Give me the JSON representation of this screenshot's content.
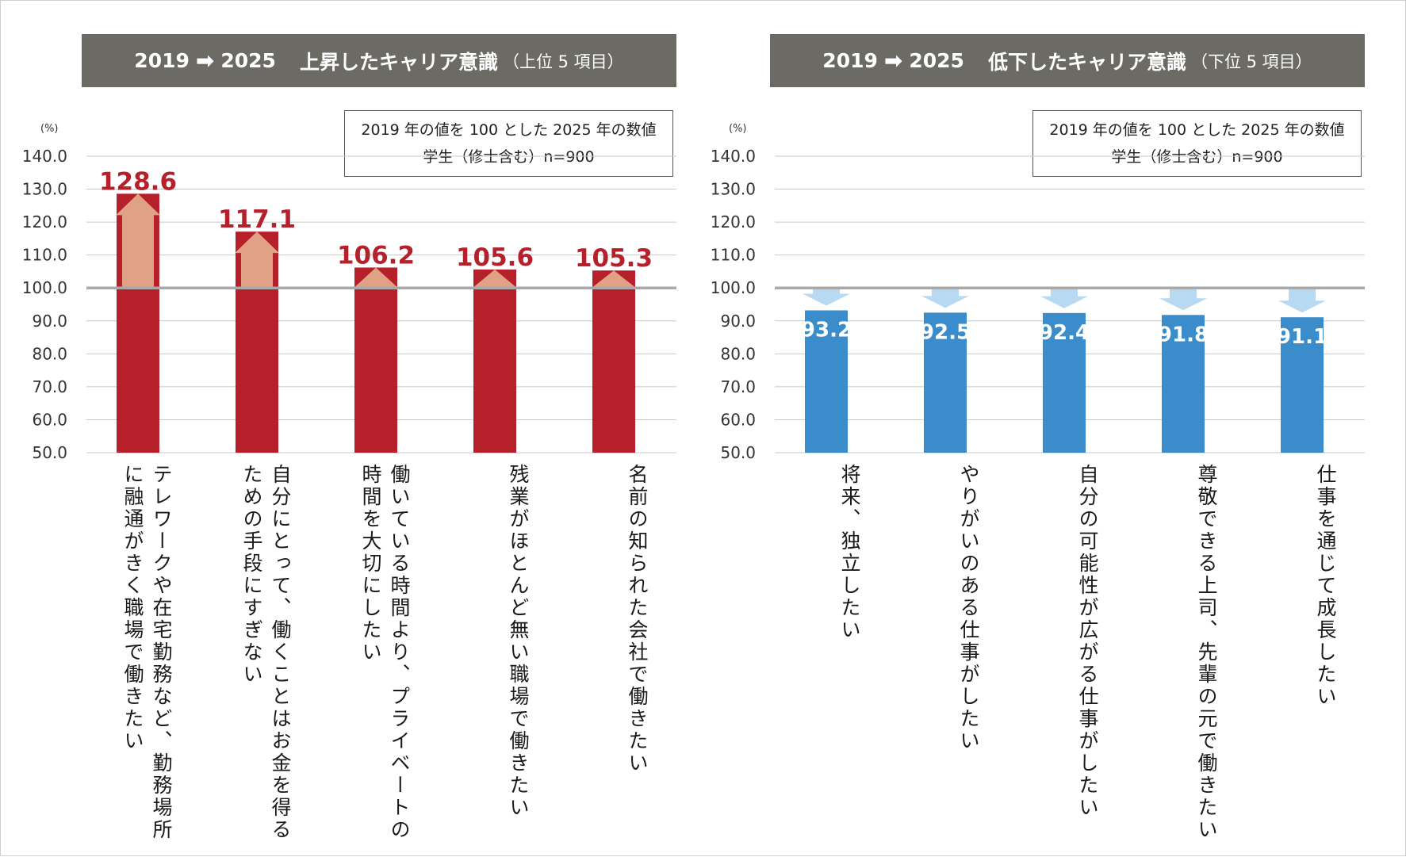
{
  "chart_data": [
    {
      "type": "bar",
      "title": {
        "years_from": "2019",
        "years_to": "2025",
        "main": "上昇したキャリア意識",
        "sub": "（上位 5 項目）"
      },
      "note_lines": [
        "2019 年の値を 100 とした 2025 年の数値",
        "学生（修士含む）n=900"
      ],
      "unit": "(%)",
      "ylim": [
        50,
        140
      ],
      "yticks": [
        "140.0",
        "130.0",
        "120.0",
        "110.0",
        "100.0",
        "90.0",
        "80.0",
        "70.0",
        "60.0",
        "50.0"
      ],
      "baseline": 100,
      "legend": "none",
      "grid": true,
      "categories": [
        "テレワークや在宅勤務など、勤務場所に融通がきく職場で働きたい",
        "自分にとって、働くことはお金を得るための手段にすぎない",
        "働いている時間より、プライベートの時間を大切にしたい",
        "残業がほとんど無い職場で働きたい",
        "名前の知られた会社で働きたい"
      ],
      "values": [
        128.6,
        117.1,
        106.2,
        105.6,
        105.3
      ],
      "labels": [
        "128.6",
        "117.1",
        "106.2",
        "105.6",
        "105.3"
      ],
      "colors": {
        "bar": "#b5202b",
        "arrow": "#e0a184",
        "label": "#b5202b"
      }
    },
    {
      "type": "bar",
      "title": {
        "years_from": "2019",
        "years_to": "2025",
        "main": "低下したキャリア意識",
        "sub": "（下位 5 項目）"
      },
      "note_lines": [
        "2019 年の値を 100 とした 2025 年の数値",
        "学生（修士含む）n=900"
      ],
      "unit": "(%)",
      "ylim": [
        50,
        140
      ],
      "yticks": [
        "140.0",
        "130.0",
        "120.0",
        "110.0",
        "100.0",
        "90.0",
        "80.0",
        "70.0",
        "60.0",
        "50.0"
      ],
      "baseline": 100,
      "legend": "none",
      "grid": true,
      "categories": [
        "将来、独立したい",
        "やりがいのある仕事がしたい",
        "自分の可能性が広がる仕事がしたい",
        "尊敬できる上司、先輩の元で働きたい",
        "仕事を通じて成長したい"
      ],
      "values": [
        93.2,
        92.5,
        92.4,
        91.8,
        91.1
      ],
      "labels": [
        "93.2",
        "92.5",
        "92.4",
        "91.8",
        "91.1"
      ],
      "colors": {
        "bar": "#3a8ccb",
        "arrow": "#b7daf2",
        "label": "#ffffff"
      }
    }
  ]
}
